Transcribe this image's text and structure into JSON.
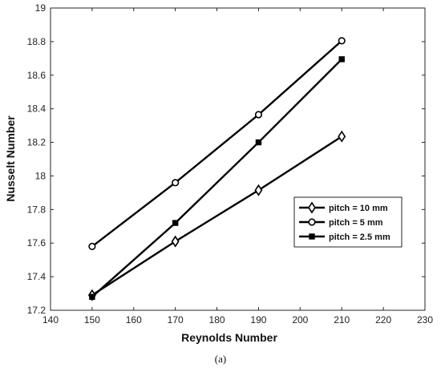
{
  "chart_data": {
    "type": "line",
    "xlabel": "Reynolds Number",
    "ylabel": "Nusselt Number",
    "xlim": [
      140,
      230
    ],
    "ylim": [
      17.2,
      19
    ],
    "xticks": [
      140,
      150,
      160,
      170,
      180,
      190,
      200,
      210,
      220,
      230
    ],
    "yticks": [
      17.2,
      17.4,
      17.6,
      17.8,
      18,
      18.2,
      18.4,
      18.6,
      18.8,
      19
    ],
    "grid": false,
    "legend_position": "right-middle",
    "x": [
      150,
      170,
      190,
      210
    ],
    "series": [
      {
        "name": "pitch = 10 mm",
        "marker": "diamond",
        "values": [
          17.29,
          17.61,
          17.915,
          18.235
        ]
      },
      {
        "name": "pitch = 5 mm",
        "marker": "circle",
        "values": [
          17.58,
          17.96,
          18.365,
          18.805
        ]
      },
      {
        "name": "pitch = 2.5 mm",
        "marker": "square",
        "values": [
          17.28,
          17.72,
          18.2,
          18.695
        ]
      }
    ],
    "line_color": "#000000"
  },
  "caption": "(a)"
}
